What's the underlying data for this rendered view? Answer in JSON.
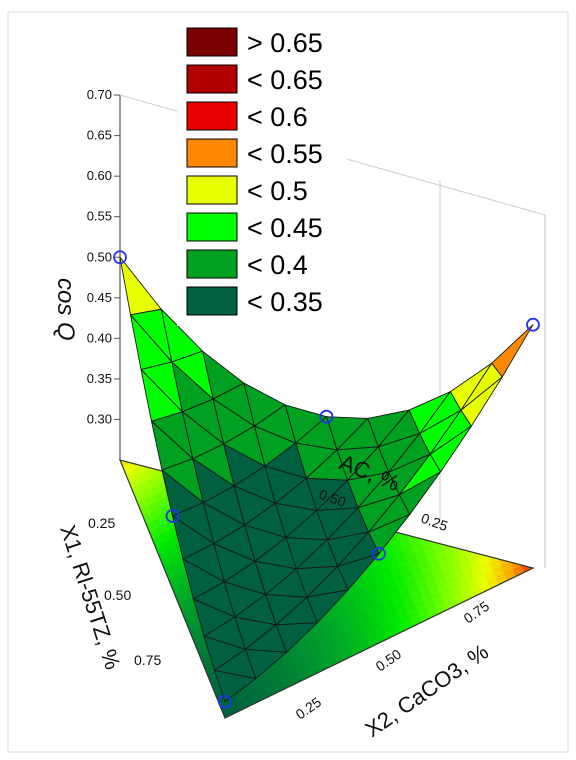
{
  "chart_data": {
    "type": "surface3d",
    "zlabel": "cos Q",
    "zlim": [
      0.25,
      0.7
    ],
    "z_ticks": [
      "0.70",
      "0.65",
      "0.60",
      "0.55",
      "0.50",
      "0.45",
      "0.40",
      "0.35",
      "0.30"
    ],
    "x1_label": "X1, Rl-55TZ, %",
    "x1_ticks": [
      "0.25",
      "0.50",
      "0.75"
    ],
    "x2_label": "X2, CaCO3, %",
    "x2_ticks": [
      "0.25",
      "0.50",
      "0.75"
    ],
    "x3_label_visible": "AC, %",
    "x3_ticks": [
      "0.50",
      "0.25"
    ],
    "legend": [
      {
        "label": "> 0.65",
        "color": "#7a0000"
      },
      {
        "label": "< 0.65",
        "color": "#b00000"
      },
      {
        "label": "< 0.6",
        "color": "#e80000"
      },
      {
        "label": "< 0.55",
        "color": "#ff8800"
      },
      {
        "label": "< 0.5",
        "color": "#e8ff00"
      },
      {
        "label": "< 0.45",
        "color": "#00ff00"
      },
      {
        "label": "< 0.4",
        "color": "#00a020"
      },
      {
        "label": "< 0.35",
        "color": "#006040"
      }
    ],
    "design_points": [
      {
        "x1": 1.0,
        "x2": 0.0,
        "x3": 0.0,
        "z": 0.27
      },
      {
        "x1": 0.0,
        "x2": 1.0,
        "x3": 0.0,
        "z": 0.55
      },
      {
        "x1": 0.0,
        "x2": 0.0,
        "x3": 1.0,
        "z": 0.5
      },
      {
        "x1": 0.5,
        "x2": 0.5,
        "x3": 0.0,
        "z": 0.36
      },
      {
        "x1": 0.5,
        "x2": 0.0,
        "x3": 0.5,
        "z": 0.34
      },
      {
        "x1": 0.0,
        "x2": 0.5,
        "x3": 0.5,
        "z": 0.37
      }
    ]
  }
}
